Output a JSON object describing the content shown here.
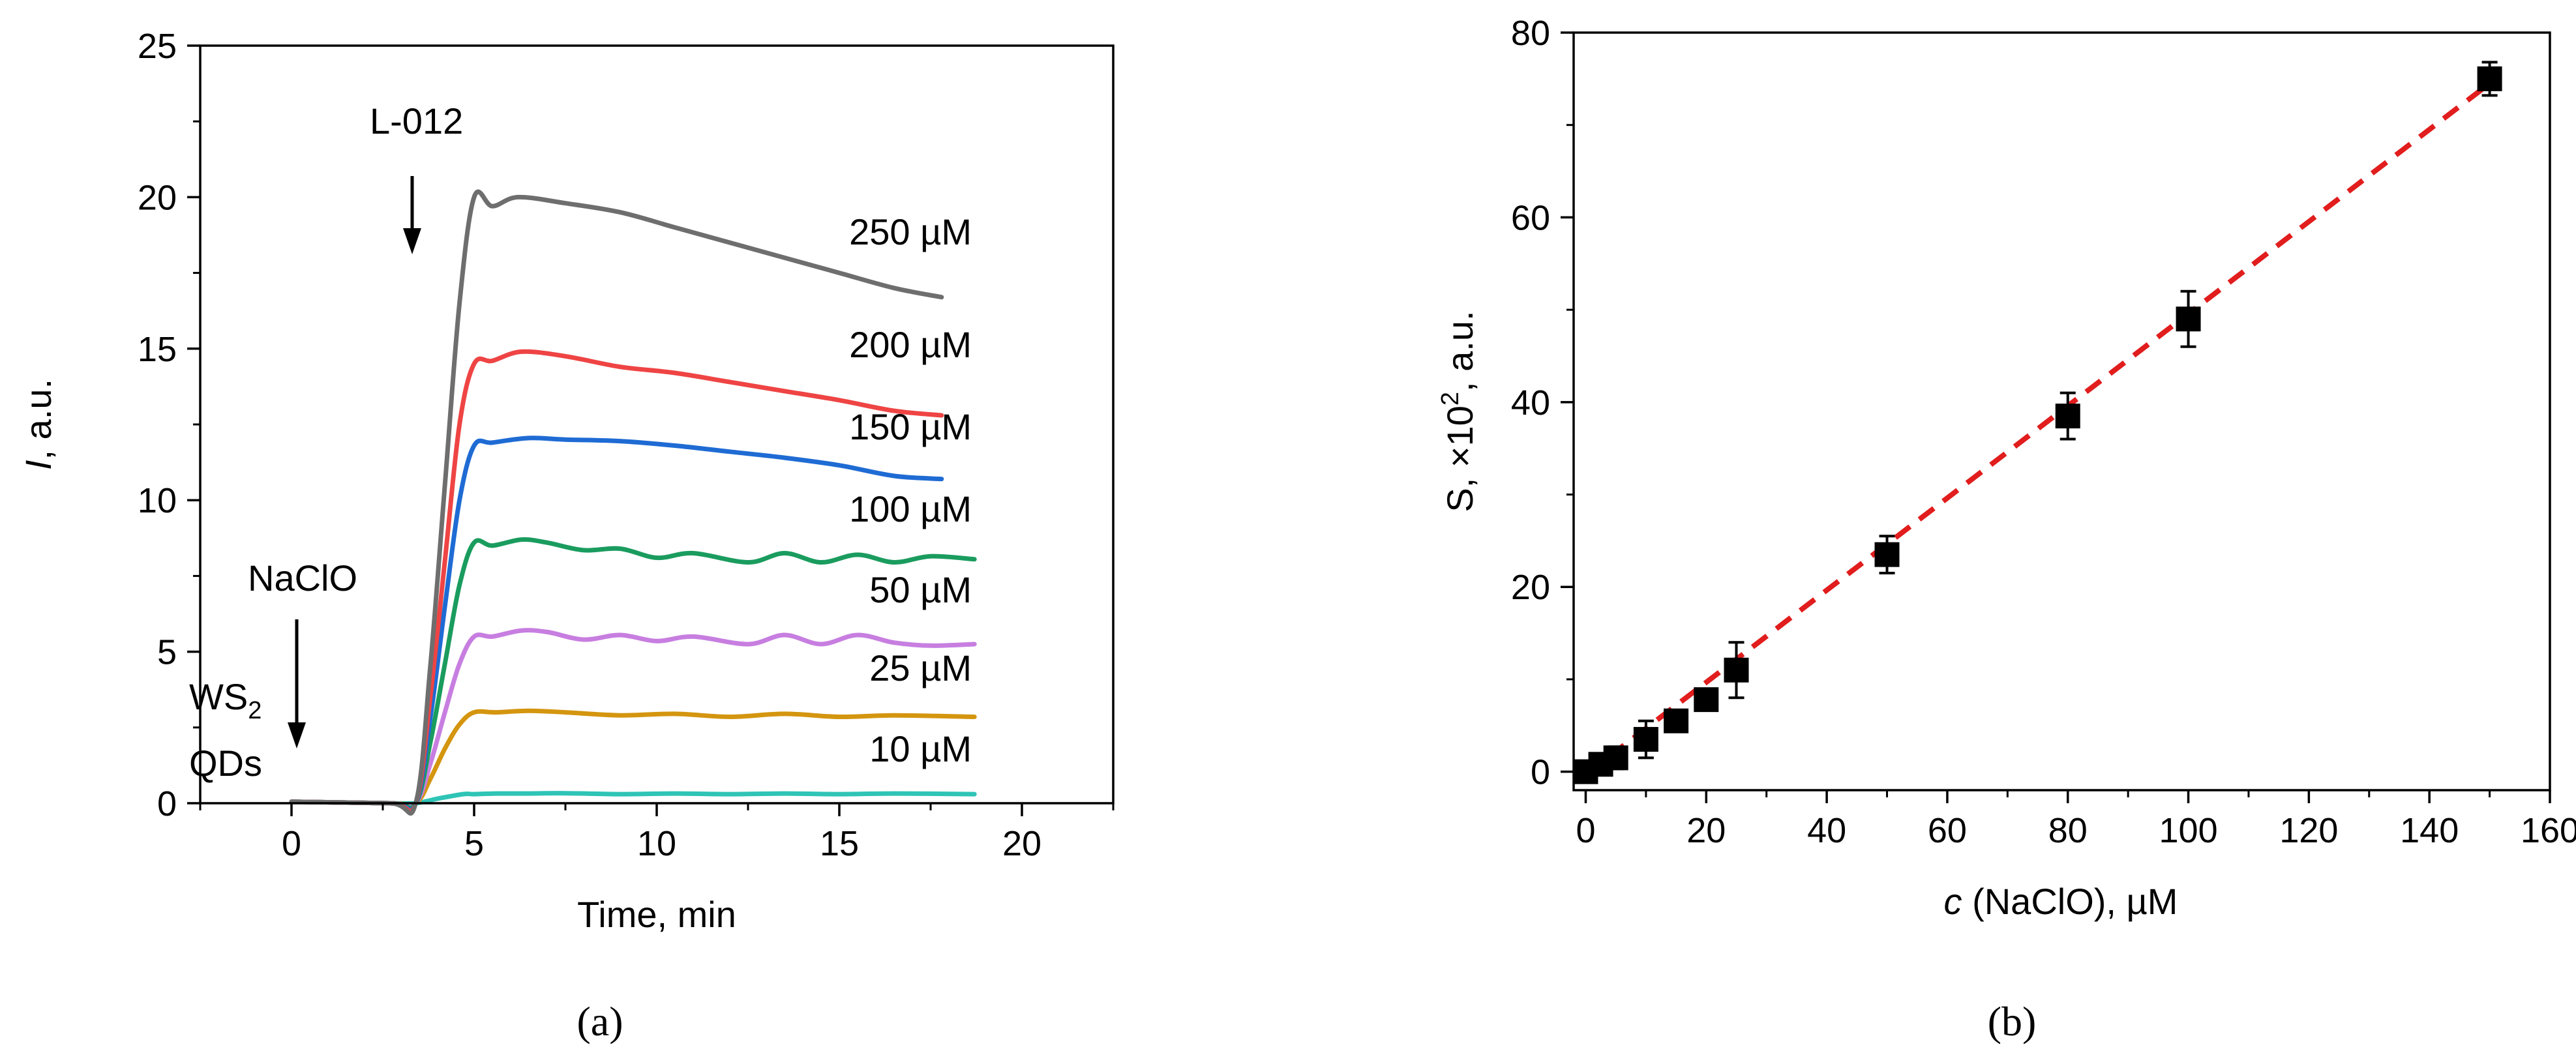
{
  "chart_data": [
    {
      "panel": "(a)",
      "type": "line",
      "xlabel": "Time, min",
      "ylabel_italic": "I",
      "ylabel_rest": ", a.u.",
      "xlim": [
        -2.5,
        22.5
      ],
      "ylim": [
        0,
        25
      ],
      "xticks": [
        0,
        5,
        10,
        15,
        20
      ],
      "yticks": [
        0,
        5,
        10,
        15,
        20,
        25
      ],
      "grid": false,
      "annotations": {
        "ws2_line1": "WS",
        "ws2_sub": "2",
        "ws2_line2": "QDs",
        "naclo": "NaClO",
        "l012": "L-012"
      },
      "series": [
        {
          "name": "10 µM",
          "color": "#2ec4b6",
          "x": [
            0,
            2.7,
            3.4,
            4.0,
            4.7,
            5.0,
            5.6,
            6.5,
            7.5,
            9.0,
            10.5,
            12.0,
            13.5,
            15.0,
            16.5,
            18.7
          ],
          "values": [
            0.05,
            0.0,
            0.0,
            0.15,
            0.3,
            0.3,
            0.32,
            0.32,
            0.33,
            0.3,
            0.32,
            0.3,
            0.32,
            0.3,
            0.32,
            0.3
          ]
        },
        {
          "name": "25 µM",
          "color": "#d4950f",
          "x": [
            0,
            2.7,
            3.4,
            3.8,
            4.2,
            4.6,
            5.0,
            5.6,
            6.5,
            7.5,
            9.0,
            10.5,
            12.0,
            13.5,
            15.0,
            16.5,
            18.7
          ],
          "values": [
            0.05,
            0.0,
            0.0,
            0.8,
            1.8,
            2.6,
            3.0,
            3.0,
            3.05,
            3.0,
            2.9,
            2.95,
            2.85,
            2.95,
            2.85,
            2.9,
            2.85
          ]
        },
        {
          "name": "50 µM",
          "color": "#c77ee0",
          "x": [
            0,
            2.7,
            3.4,
            3.8,
            4.2,
            4.6,
            5.0,
            5.5,
            6.3,
            7.0,
            8.0,
            9.0,
            10.0,
            11.0,
            12.5,
            13.5,
            14.5,
            15.5,
            16.5,
            17.5,
            18.7
          ],
          "values": [
            0.05,
            0.0,
            0.0,
            1.3,
            3.0,
            4.6,
            5.5,
            5.5,
            5.7,
            5.65,
            5.4,
            5.55,
            5.35,
            5.5,
            5.25,
            5.55,
            5.25,
            5.55,
            5.3,
            5.2,
            5.25
          ]
        },
        {
          "name": "100 µM",
          "color": "#1a9c5e",
          "x": [
            0,
            2.7,
            3.4,
            3.8,
            4.2,
            4.6,
            5.0,
            5.5,
            6.3,
            7.0,
            8.0,
            9.0,
            10.0,
            11.0,
            12.5,
            13.5,
            14.5,
            15.5,
            16.5,
            17.5,
            18.7
          ],
          "values": [
            0.05,
            0.0,
            0.0,
            2.0,
            4.6,
            7.2,
            8.6,
            8.5,
            8.7,
            8.6,
            8.35,
            8.4,
            8.1,
            8.25,
            7.95,
            8.25,
            7.95,
            8.2,
            7.95,
            8.15,
            8.05
          ]
        },
        {
          "name": "150 µM",
          "color": "#1f6bd4",
          "x": [
            0,
            2.7,
            3.4,
            3.8,
            4.2,
            4.6,
            5.0,
            5.5,
            6.5,
            7.5,
            9.0,
            10.5,
            12.0,
            13.5,
            15.0,
            16.5,
            17.8
          ],
          "values": [
            0.05,
            0.0,
            0.0,
            2.8,
            6.5,
            10.0,
            11.8,
            11.9,
            12.05,
            12.0,
            11.95,
            11.8,
            11.6,
            11.4,
            11.15,
            10.8,
            10.7
          ]
        },
        {
          "name": "200 µM",
          "color": "#ef4444",
          "x": [
            0,
            2.7,
            3.4,
            3.8,
            4.2,
            4.6,
            5.0,
            5.5,
            6.3,
            7.5,
            9.0,
            10.5,
            12.0,
            13.5,
            15.0,
            16.5,
            17.8
          ],
          "values": [
            0.05,
            0.0,
            0.0,
            3.5,
            8.0,
            12.5,
            14.5,
            14.6,
            14.9,
            14.75,
            14.4,
            14.2,
            13.9,
            13.6,
            13.3,
            12.95,
            12.8
          ]
        },
        {
          "name": "250 µM",
          "color": "#6e6e6e",
          "x": [
            0,
            2.7,
            3.4,
            3.8,
            4.2,
            4.6,
            5.0,
            5.5,
            6.2,
            7.5,
            9.0,
            10.5,
            12.0,
            13.5,
            15.0,
            16.5,
            17.8
          ],
          "values": [
            0.05,
            0.0,
            0.0,
            4.5,
            10.5,
            16.5,
            20.0,
            19.7,
            20.0,
            19.8,
            19.5,
            19.0,
            18.5,
            18.0,
            17.5,
            17.0,
            16.7
          ]
        }
      ]
    },
    {
      "panel": "(b)",
      "type": "scatter",
      "xlabel_italic": "c",
      "xlabel_rest": " (NaClO), µM",
      "ylabel_pre": "S, ×10",
      "ylabel_sup": "2",
      "ylabel_post": ", a.u.",
      "xlim": [
        -2,
        160
      ],
      "ylim": [
        -2,
        80
      ],
      "xticks": [
        0,
        20,
        40,
        60,
        80,
        100,
        120,
        140,
        160
      ],
      "yticks": [
        0,
        20,
        40,
        60,
        80
      ],
      "grid": false,
      "marker_color": "#000000",
      "points": [
        {
          "x": 0,
          "y": 0,
          "err": 0.5
        },
        {
          "x": 2.5,
          "y": 0.8,
          "err": 0.8
        },
        {
          "x": 5,
          "y": 1.5,
          "err": 1.2
        },
        {
          "x": 10,
          "y": 3.5,
          "err": 2.0
        },
        {
          "x": 15,
          "y": 5.5,
          "err": 1.0
        },
        {
          "x": 20,
          "y": 7.8,
          "err": 0.8
        },
        {
          "x": 25,
          "y": 11,
          "err": 3.0
        },
        {
          "x": 50,
          "y": 23.5,
          "err": 2.0
        },
        {
          "x": 80,
          "y": 38.5,
          "err": 2.5
        },
        {
          "x": 100,
          "y": 49,
          "err": 3.0
        },
        {
          "x": 150,
          "y": 75,
          "err": 1.8
        }
      ],
      "fit": {
        "color": "#e11d1d",
        "style": "dashed",
        "x": [
          0,
          150
        ],
        "y": [
          -0.3,
          74.5
        ]
      }
    }
  ]
}
